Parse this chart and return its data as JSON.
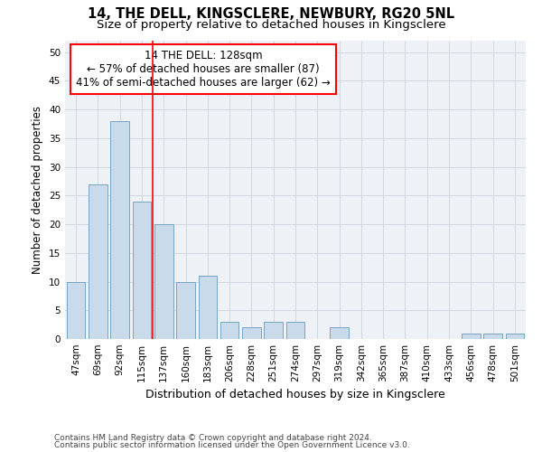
{
  "title": "14, THE DELL, KINGSCLERE, NEWBURY, RG20 5NL",
  "subtitle": "Size of property relative to detached houses in Kingsclere",
  "xlabel": "Distribution of detached houses by size in Kingsclere",
  "ylabel": "Number of detached properties",
  "categories": [
    "47sqm",
    "69sqm",
    "92sqm",
    "115sqm",
    "137sqm",
    "160sqm",
    "183sqm",
    "206sqm",
    "228sqm",
    "251sqm",
    "274sqm",
    "297sqm",
    "319sqm",
    "342sqm",
    "365sqm",
    "387sqm",
    "410sqm",
    "433sqm",
    "456sqm",
    "478sqm",
    "501sqm"
  ],
  "values": [
    10,
    27,
    38,
    24,
    20,
    10,
    11,
    3,
    2,
    3,
    3,
    0,
    2,
    0,
    0,
    0,
    0,
    0,
    1,
    1,
    1
  ],
  "bar_color": "#c9daea",
  "bar_edge_color": "#6699bb",
  "grid_color": "#d0d8e0",
  "background_color": "#eef2f7",
  "annotation_line1": "14 THE DELL: 128sqm",
  "annotation_line2": "← 57% of detached houses are smaller (87)",
  "annotation_line3": "41% of semi-detached houses are larger (62) →",
  "annotation_box_color": "red",
  "vline_x_index": 3.5,
  "vline_color": "red",
  "ylim": [
    0,
    52
  ],
  "yticks": [
    0,
    5,
    10,
    15,
    20,
    25,
    30,
    35,
    40,
    45,
    50
  ],
  "footnote1": "Contains HM Land Registry data © Crown copyright and database right 2024.",
  "footnote2": "Contains public sector information licensed under the Open Government Licence v3.0.",
  "title_fontsize": 10.5,
  "subtitle_fontsize": 9.5,
  "xlabel_fontsize": 9,
  "ylabel_fontsize": 8.5,
  "tick_fontsize": 7.5,
  "annot_fontsize": 8.5,
  "footnote_fontsize": 6.5
}
